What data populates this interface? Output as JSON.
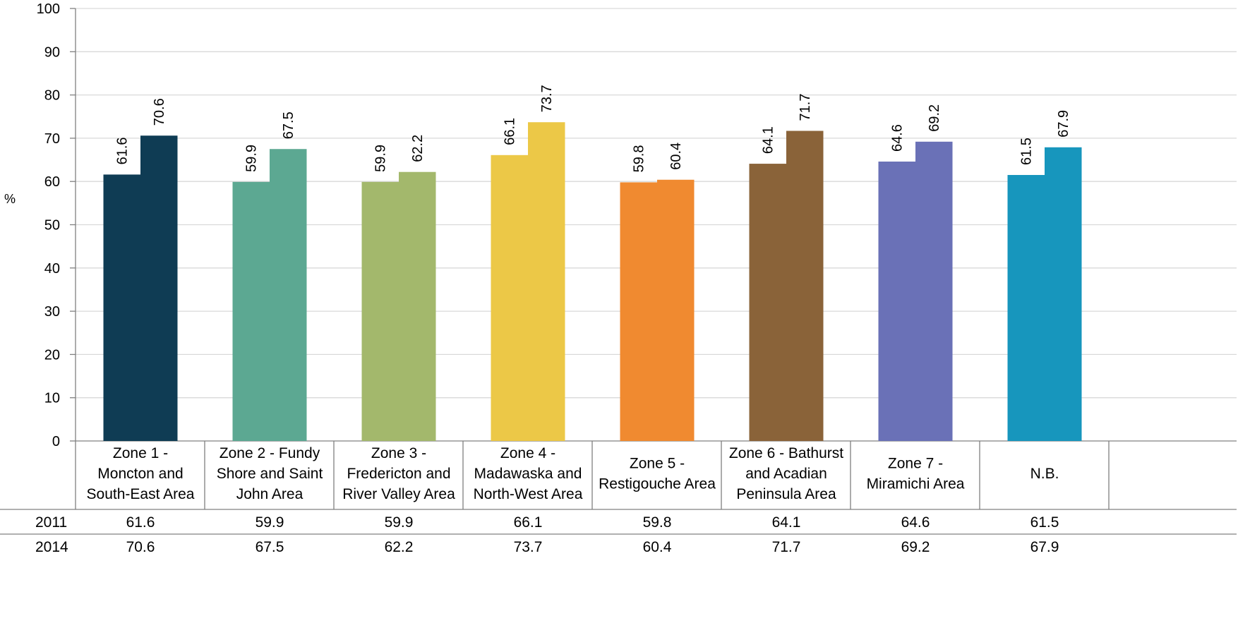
{
  "chart_data": {
    "type": "bar",
    "ylabel": "%",
    "ylim": [
      0,
      100
    ],
    "yticks": [
      0,
      10,
      20,
      30,
      40,
      50,
      60,
      70,
      80,
      90,
      100
    ],
    "grid": true,
    "categories": [
      [
        "Zone 1 -",
        "Moncton and",
        "South-East Area"
      ],
      [
        "Zone 2 - Fundy",
        "Shore and Saint",
        "John Area"
      ],
      [
        "Zone 3 -",
        "Fredericton and",
        "River Valley Area"
      ],
      [
        "Zone 4 -",
        "Madawaska and",
        "North-West Area"
      ],
      [
        "Zone 5 -",
        "Restigouche Area"
      ],
      [
        "Zone 6 - Bathurst",
        "and Acadian",
        "Peninsula Area"
      ],
      [
        "Zone 7 -",
        "Miramichi Area"
      ],
      [
        "N.B."
      ]
    ],
    "colors": [
      "#0f3c54",
      "#5ca892",
      "#a3b86c",
      "#ecc847",
      "#f08a30",
      "#8a6339",
      "#6a71b7",
      "#1796bd"
    ],
    "series": [
      {
        "name": "2011",
        "values": [
          61.6,
          59.9,
          59.9,
          66.1,
          59.8,
          64.1,
          64.6,
          61.5
        ]
      },
      {
        "name": "2014",
        "values": [
          70.6,
          67.5,
          62.2,
          73.7,
          60.4,
          71.7,
          69.2,
          67.9
        ]
      }
    ]
  }
}
